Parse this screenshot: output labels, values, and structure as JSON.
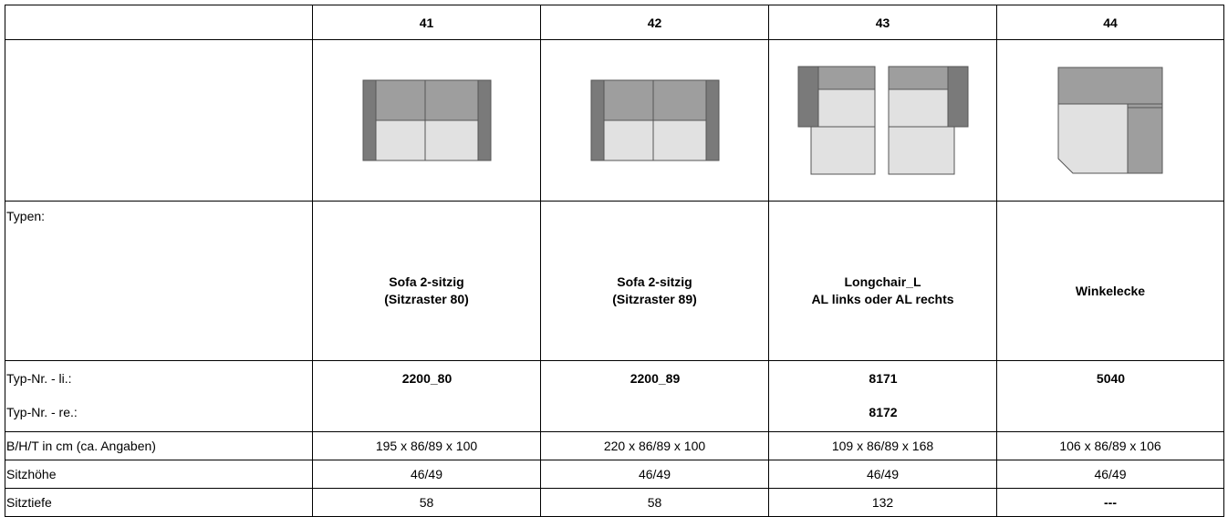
{
  "columns": [
    "41",
    "42",
    "43",
    "44"
  ],
  "rows": {
    "typen": {
      "label": "Typen:",
      "values": [
        [
          "Sofa 2-sitzig",
          "(Sitzraster 80)"
        ],
        [
          "Sofa 2-sitzig",
          "(Sitzraster 89)"
        ],
        [
          "Longchair_L",
          "AL links oder AL rechts"
        ],
        [
          "Winkelecke",
          ""
        ]
      ]
    },
    "typ_nr_li": {
      "label": "Typ-Nr. - li.:",
      "values": [
        "2200_80",
        "2200_89",
        "8171",
        "5040"
      ]
    },
    "typ_nr_re": {
      "label": "Typ-Nr. - re.:",
      "values": [
        "",
        "",
        "8172",
        ""
      ]
    },
    "bht": {
      "label": "B/H/T in cm (ca. Angaben)",
      "values": [
        "195 x 86/89 x 100",
        "220 x 86/89 x 100",
        "109 x 86/89 x 168",
        "106 x 86/89 x 106"
      ]
    },
    "sitzhoehe": {
      "label": "Sitzhöhe",
      "values": [
        "46/49",
        "46/49",
        "46/49",
        "46/49"
      ]
    },
    "sitztiefe": {
      "label": "Sitztiefe",
      "values": [
        "58",
        "58",
        "132",
        "---"
      ]
    }
  },
  "drawings": [
    "sofa-2-seater-80-drawing",
    "sofa-2-seater-89-drawing",
    "longchair-drawing",
    "corner-sofa-drawing"
  ],
  "colors": {
    "armrest": "#7a7a7a",
    "backrest": "#9e9e9e",
    "seat": "#e1e1e1",
    "outline": "#555555"
  }
}
